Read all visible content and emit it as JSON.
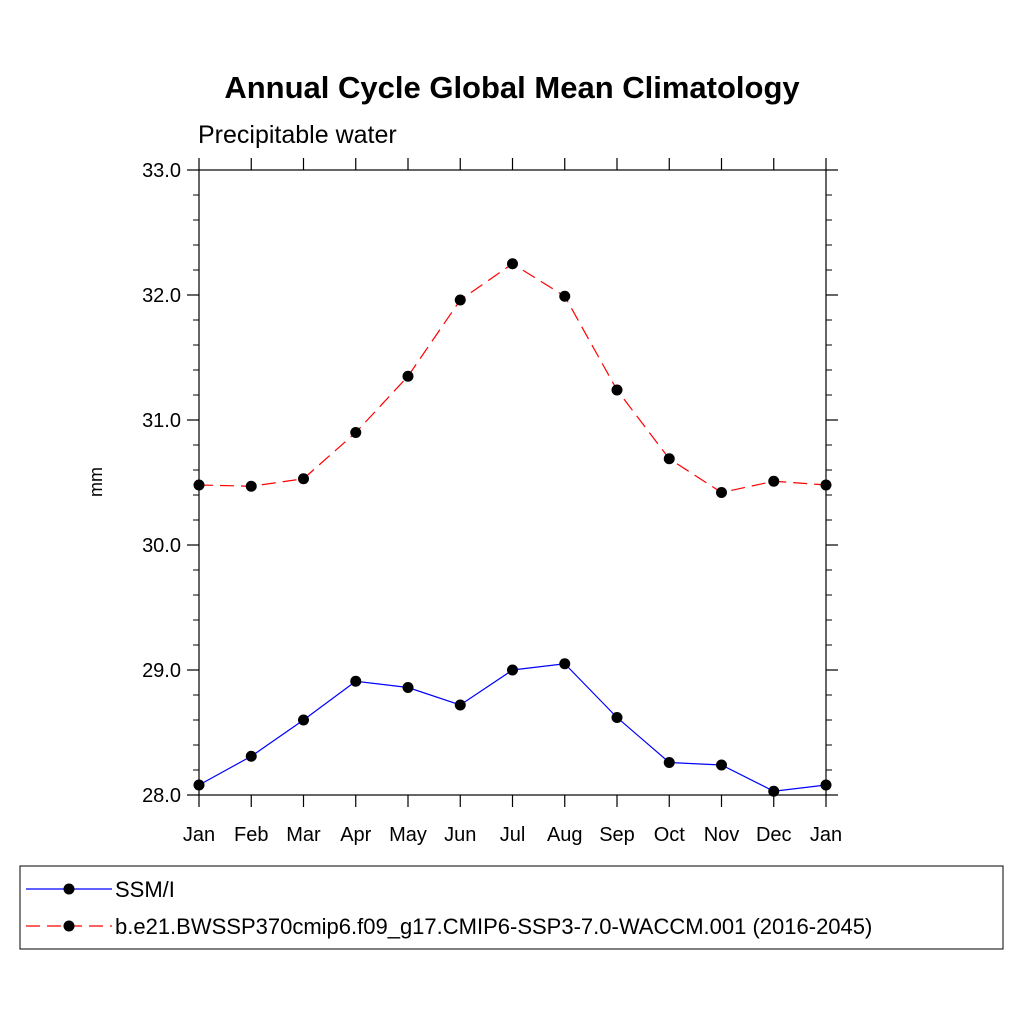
{
  "chart_data": {
    "type": "line",
    "title": "Annual Cycle Global Mean Climatology",
    "subtitle": "Precipitable water",
    "xlabel": "",
    "ylabel": "mm",
    "categories": [
      "Jan",
      "Feb",
      "Mar",
      "Apr",
      "May",
      "Jun",
      "Jul",
      "Aug",
      "Sep",
      "Oct",
      "Nov",
      "Dec",
      "Jan"
    ],
    "ylim": [
      28.0,
      33.0
    ],
    "yticks": [
      28.0,
      29.0,
      30.0,
      31.0,
      32.0,
      33.0
    ],
    "ytick_labels": [
      "28.0",
      "29.0",
      "30.0",
      "31.0",
      "32.0",
      "33.0"
    ],
    "grid": false,
    "series": [
      {
        "name": "SSM/I",
        "color": "#0000ff",
        "line_style": "solid",
        "marker": "filled-circle",
        "marker_color": "#000000",
        "values": [
          28.08,
          28.31,
          28.6,
          28.91,
          28.86,
          28.72,
          29.0,
          29.05,
          28.62,
          28.26,
          28.24,
          28.03,
          28.08
        ]
      },
      {
        "name": "b.e21.BWSSP370cmip6.f09_g17.CMIP6-SSP3-7.0-WACCM.001 (2016-2045)",
        "color": "#ff0000",
        "line_style": "dashed",
        "marker": "filled-circle",
        "marker_color": "#000000",
        "values": [
          30.48,
          30.47,
          30.53,
          30.9,
          31.35,
          31.96,
          32.25,
          31.99,
          31.24,
          30.69,
          30.42,
          30.51,
          30.48
        ]
      }
    ],
    "legend_position": "bottom"
  }
}
